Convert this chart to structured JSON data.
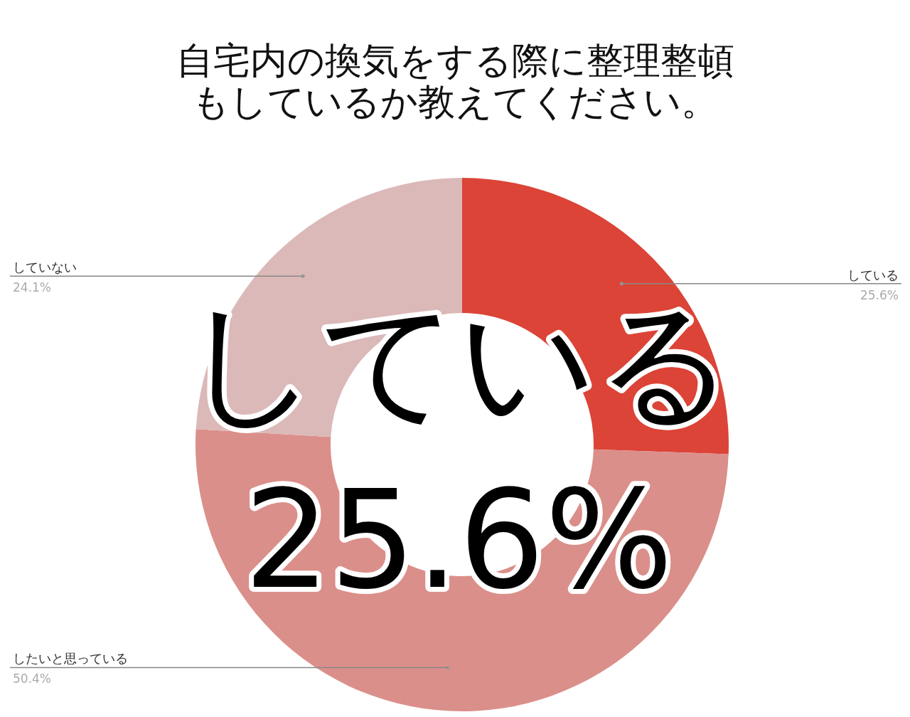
{
  "chart_data": {
    "type": "donut",
    "title": "自宅内の換気をする際に整理整頓もしているか教えてください。",
    "categories": [
      "している",
      "したいと思っている",
      "していない"
    ],
    "values": [
      25.6,
      50.4,
      24.1
    ],
    "value_labels": [
      "25.6%",
      "50.4%",
      "24.1%"
    ],
    "colors": [
      "#db4437",
      "#db8f8a",
      "#dbb9b8"
    ],
    "annotations": [
      "している",
      "25.6%"
    ]
  }
}
